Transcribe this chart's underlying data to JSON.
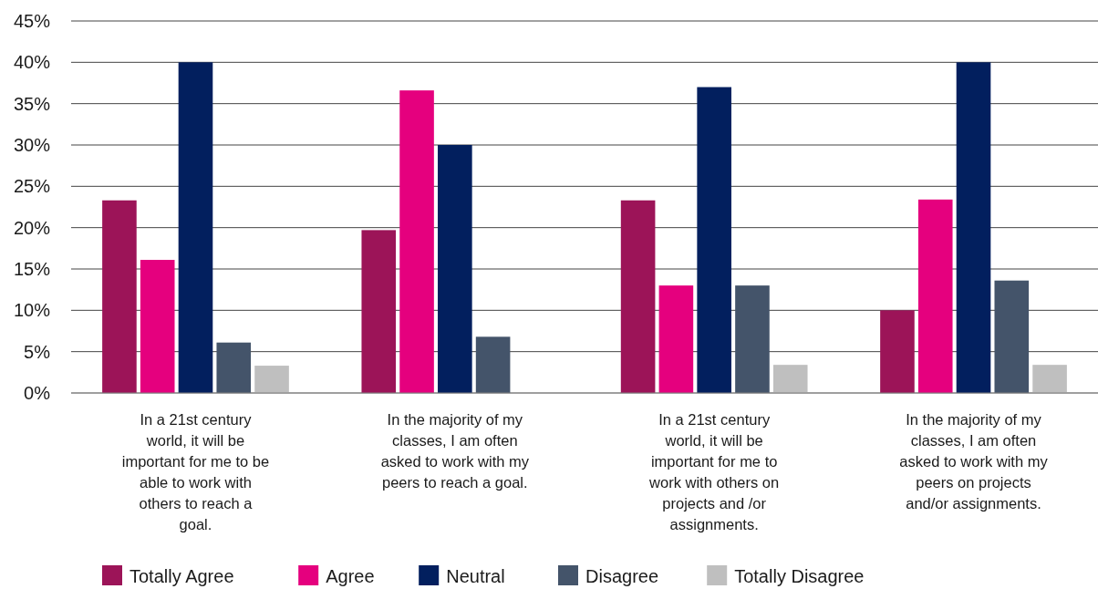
{
  "chart_data": {
    "type": "bar",
    "categories": [
      "In a 21st century world, it will be important for me to be able to work with others to reach a goal.",
      "In the majority of my classes, I am often asked to work with my peers to reach a goal.",
      "In a 21st century world, it will be important for me to work with others on projects and /or assignments.",
      "In the majority of my classes, I am often asked to work with my peers on projects and/or assignments."
    ],
    "series": [
      {
        "name": "Totally Agree",
        "color": "#9c1458",
        "values": [
          23.3,
          19.7,
          23.3,
          10
        ]
      },
      {
        "name": "Agree",
        "color": "#e5007e",
        "values": [
          16.1,
          36.6,
          13,
          23.4
        ]
      },
      {
        "name": "Neutral",
        "color": "#021f5e",
        "values": [
          40,
          30,
          37,
          40
        ]
      },
      {
        "name": "Disagree",
        "color": "#44546a",
        "values": [
          6.1,
          6.8,
          13,
          13.6
        ]
      },
      {
        "name": "Totally Disagree",
        "color": "#bfbfbf",
        "values": [
          3.3,
          null,
          3.4,
          3.4
        ]
      }
    ],
    "ylim": [
      0,
      45
    ],
    "yticks": [
      {
        "value": 0,
        "label": "0%"
      },
      {
        "value": 5,
        "label": "5%"
      },
      {
        "value": 10,
        "label": "10%"
      },
      {
        "value": 15,
        "label": "15%"
      },
      {
        "value": 20,
        "label": "20%"
      },
      {
        "value": 25,
        "label": "25%"
      },
      {
        "value": 30,
        "label": "30%"
      },
      {
        "value": 35,
        "label": "35%"
      },
      {
        "value": 40,
        "label": "40%"
      },
      {
        "value": 45,
        "label": "45%"
      }
    ],
    "grid": "y",
    "legend": "bottom"
  }
}
